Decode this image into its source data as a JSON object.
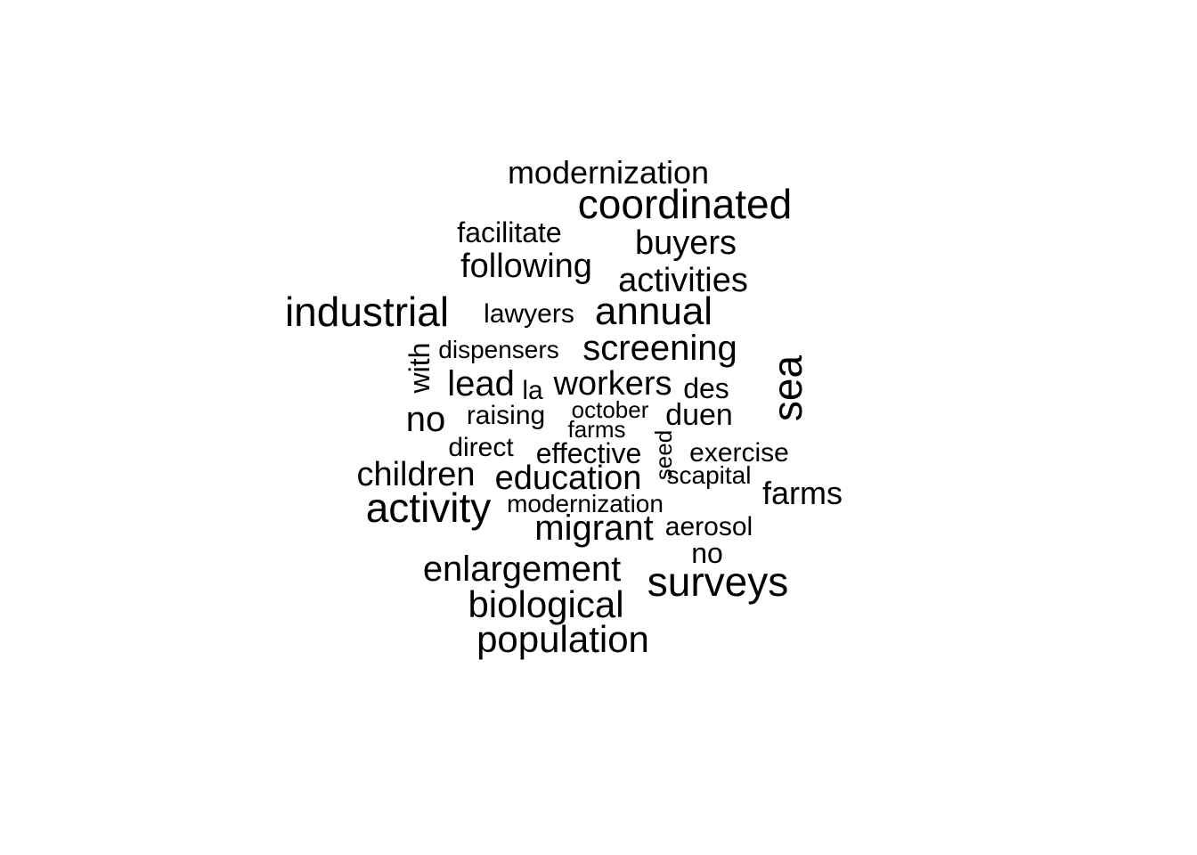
{
  "words": [
    {
      "text": "modernization"
    },
    {
      "text": "coordinated"
    },
    {
      "text": "facilitate"
    },
    {
      "text": "buyers"
    },
    {
      "text": "following"
    },
    {
      "text": "activities"
    },
    {
      "text": "industrial"
    },
    {
      "text": "lawyers"
    },
    {
      "text": "annual"
    },
    {
      "text": "with"
    },
    {
      "text": "dispensers"
    },
    {
      "text": "screening"
    },
    {
      "text": "sea"
    },
    {
      "text": "lead"
    },
    {
      "text": "la"
    },
    {
      "text": "workers"
    },
    {
      "text": "des"
    },
    {
      "text": "no"
    },
    {
      "text": "raising"
    },
    {
      "text": "october"
    },
    {
      "text": "duen"
    },
    {
      "text": "farms"
    },
    {
      "text": "direct"
    },
    {
      "text": "seed"
    },
    {
      "text": "effective"
    },
    {
      "text": "exercise"
    },
    {
      "text": "children"
    },
    {
      "text": "education"
    },
    {
      "text": "scapital"
    },
    {
      "text": "farms"
    },
    {
      "text": "activity"
    },
    {
      "text": "modernization"
    },
    {
      "text": "migrant"
    },
    {
      "text": "aerosol"
    },
    {
      "text": "no"
    },
    {
      "text": "enlargement"
    },
    {
      "text": "surveys"
    },
    {
      "text": "biological"
    },
    {
      "text": "population"
    }
  ]
}
